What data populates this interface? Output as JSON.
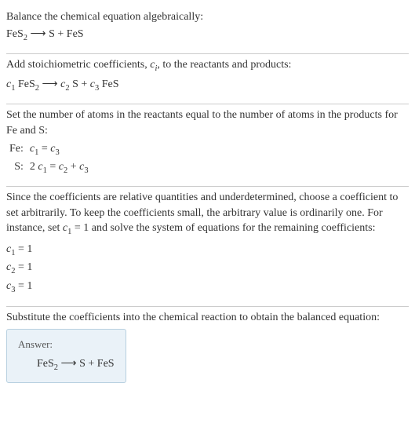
{
  "section1": {
    "title": "Balance the chemical equation algebraically:",
    "formula_parts": [
      "FeS",
      "2",
      " ⟶ S + FeS"
    ]
  },
  "section2": {
    "title_parts": [
      "Add stoichiometric coefficients, ",
      "c",
      "i",
      ", to the reactants and products:"
    ],
    "formula_parts": [
      "c",
      "1",
      " FeS",
      "2",
      " ⟶ ",
      "c",
      "2",
      " S + ",
      "c",
      "3",
      " FeS"
    ]
  },
  "section3": {
    "title": "Set the number of atoms in the reactants equal to the number of atoms in the products for Fe and S:",
    "rows": [
      {
        "element": "Fe:",
        "eq_parts": [
          "c",
          "1",
          " = ",
          "c",
          "3"
        ]
      },
      {
        "element": "S:",
        "eq_parts": [
          "2 ",
          "c",
          "1",
          " = ",
          "c",
          "2",
          " + ",
          "c",
          "3"
        ]
      }
    ]
  },
  "section4": {
    "title_parts": [
      "Since the coefficients are relative quantities and underdetermined, choose a coefficient to set arbitrarily. To keep the coefficients small, the arbitrary value is ordinarily one. For instance, set ",
      "c",
      "1",
      " = 1 and solve the system of equations for the remaining coefficients:"
    ],
    "coeffs": [
      {
        "var": "c",
        "sub": "1",
        "val": " = 1"
      },
      {
        "var": "c",
        "sub": "2",
        "val": " = 1"
      },
      {
        "var": "c",
        "sub": "3",
        "val": " = 1"
      }
    ]
  },
  "section5": {
    "title": "Substitute the coefficients into the chemical reaction to obtain the balanced equation:",
    "answer_label": "Answer:",
    "answer_parts": [
      "FeS",
      "2",
      " ⟶ S + FeS"
    ]
  },
  "colors": {
    "text": "#333333",
    "divider": "#cccccc",
    "answer_bg": "#eaf2f8",
    "answer_border": "#b8d0e0"
  }
}
